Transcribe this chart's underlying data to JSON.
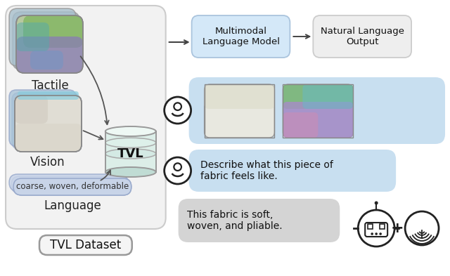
{
  "bg_color": "#ffffff",
  "left_panel_bg": "#f2f2f2",
  "left_panel_border": "#cccccc",
  "mlm_box_bg": "#d4e8f8",
  "mlm_box_border": "#aac4dd",
  "nlo_box_bg": "#eeeeee",
  "nlo_box_border": "#cccccc",
  "chat_blue_bg": "#c8dff0",
  "chat_gray_bg": "#d8d8d8",
  "lang_pill_bg": "#c8d4e8",
  "lang_pill_border": "#aabbcc",
  "arrow_color": "#555555",
  "tactile_label": "Tactile",
  "vision_label": "Vision",
  "language_label": "Language",
  "tvl_label": "TVL",
  "dataset_label": "TVL Dataset",
  "lang_text": "coarse, woven, deformable",
  "mlm_text": "Multimodal\nLanguage Model",
  "nlo_text": "Natural Language\nOutput",
  "describe_text": "Describe what this piece of\nfabric feels like.",
  "response_text": "This fabric is soft,\nwoven, and pliable."
}
